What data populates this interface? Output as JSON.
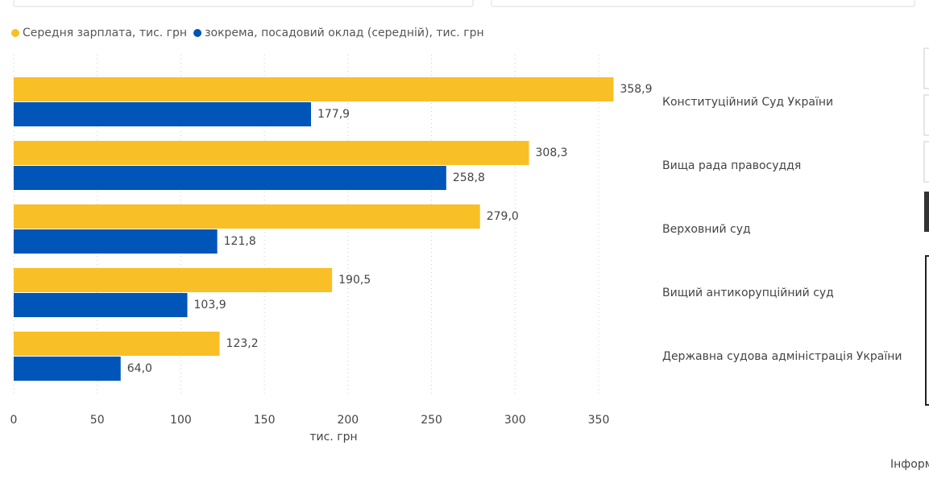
{
  "chart_data": {
    "type": "bar",
    "orientation": "horizontal",
    "categories": [
      "Конституційний Суд України",
      "Вища рада правосуддя",
      "Верховний суд",
      "Вищий антикорупційний суд",
      "Державна судова адміністрація України"
    ],
    "series": [
      {
        "name": "Середня зарплата, тис. грн",
        "color": "#f9bf26",
        "values": [
          358.9,
          308.3,
          279.0,
          190.5,
          123.2
        ],
        "value_labels": [
          "358,9",
          "308,3",
          "279,0",
          "190,5",
          "123,2"
        ]
      },
      {
        "name": "зокрема, посадовий оклад (середній), тис. грн",
        "color": "#0055b8",
        "values": [
          177.9,
          258.8,
          121.8,
          103.9,
          64.0
        ],
        "value_labels": [
          "177,9",
          "258,8",
          "121,8",
          "103,9",
          "64,0"
        ]
      }
    ],
    "x_label": "тис. грн",
    "xlim": [
      0,
      370
    ],
    "xticks": [
      0,
      50,
      100,
      150,
      200,
      250,
      300,
      350
    ],
    "grid": true
  },
  "footer": "Інформ"
}
